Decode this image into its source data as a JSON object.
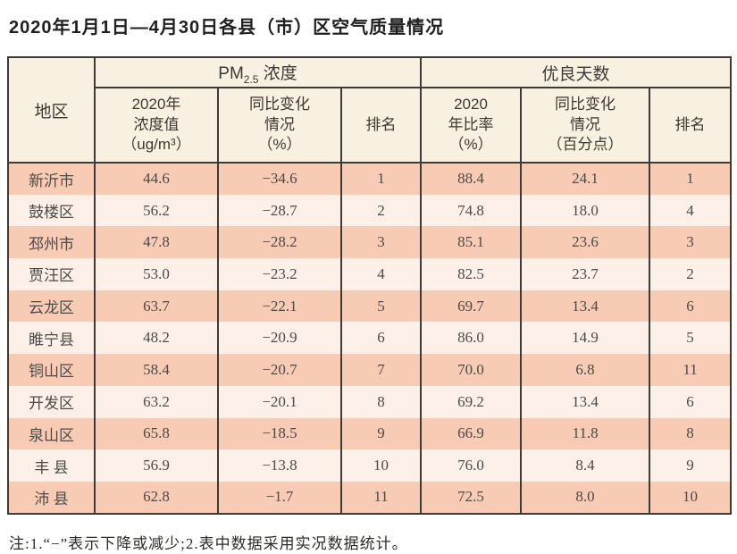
{
  "title": "2020年1月1日—4月30日各县（市）区空气质量情况",
  "table": {
    "region_header": "地区",
    "group1_prefix": "PM",
    "group1_sub": "2.5",
    "group1_suffix": " 浓度",
    "group2": "优良天数",
    "sub_headers": [
      "2020年\n浓度值\n（ug/m³）",
      "同比变化\n情况\n（%）",
      "排名",
      "2020\n年比率\n（%）",
      "同比变化\n情况\n（百分点）",
      "排名"
    ],
    "row_fields": [
      "region",
      "pm_value",
      "pm_change",
      "pm_rank",
      "good_rate",
      "good_change",
      "good_rank"
    ],
    "rows": [
      {
        "region": "新沂市",
        "pm_value": "44.6",
        "pm_change": "−34.6",
        "pm_rank": "1",
        "good_rate": "88.4",
        "good_change": "24.1",
        "good_rank": "1"
      },
      {
        "region": "鼓楼区",
        "pm_value": "56.2",
        "pm_change": "−28.7",
        "pm_rank": "2",
        "good_rate": "74.8",
        "good_change": "18.0",
        "good_rank": "4"
      },
      {
        "region": "邳州市",
        "pm_value": "47.8",
        "pm_change": "−28.2",
        "pm_rank": "3",
        "good_rate": "85.1",
        "good_change": "23.6",
        "good_rank": "3"
      },
      {
        "region": "贾汪区",
        "pm_value": "53.0",
        "pm_change": "−23.2",
        "pm_rank": "4",
        "good_rate": "82.5",
        "good_change": "23.7",
        "good_rank": "2"
      },
      {
        "region": "云龙区",
        "pm_value": "63.7",
        "pm_change": "−22.1",
        "pm_rank": "5",
        "good_rate": "69.7",
        "good_change": "13.4",
        "good_rank": "6"
      },
      {
        "region": "睢宁县",
        "pm_value": "48.2",
        "pm_change": "−20.9",
        "pm_rank": "6",
        "good_rate": "86.0",
        "good_change": "14.9",
        "good_rank": "5"
      },
      {
        "region": "铜山区",
        "pm_value": "58.4",
        "pm_change": "−20.7",
        "pm_rank": "7",
        "good_rate": "70.0",
        "good_change": "6.8",
        "good_rank": "11"
      },
      {
        "region": "开发区",
        "pm_value": "63.2",
        "pm_change": "−20.1",
        "pm_rank": "8",
        "good_rate": "69.2",
        "good_change": "13.4",
        "good_rank": "6"
      },
      {
        "region": "泉山区",
        "pm_value": "65.8",
        "pm_change": "−18.5",
        "pm_rank": "9",
        "good_rate": "66.9",
        "good_change": "11.8",
        "good_rank": "8"
      },
      {
        "region": "丰 县",
        "pm_value": "56.9",
        "pm_change": "−13.8",
        "pm_rank": "10",
        "good_rate": "76.0",
        "good_change": "8.4",
        "good_rank": "9"
      },
      {
        "region": "沛 县",
        "pm_value": "62.8",
        "pm_change": "−1.7",
        "pm_rank": "11",
        "good_rate": "72.5",
        "good_change": "8.0",
        "good_rank": "10"
      }
    ]
  },
  "note": "注:1.“−”表示下降或减少;2.表中数据采用实况数据统计。"
}
